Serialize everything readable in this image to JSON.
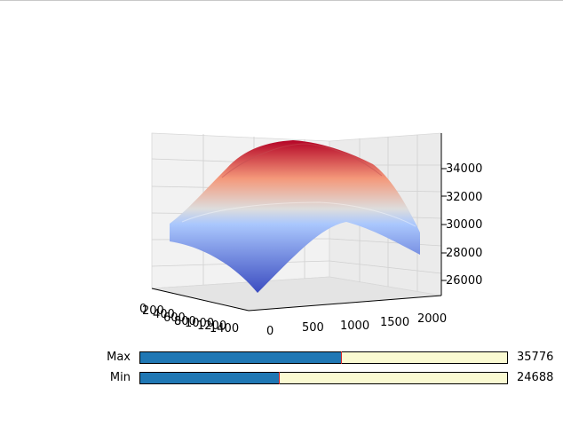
{
  "plot": {
    "z_ticks": [
      "26000",
      "28000",
      "30000",
      "32000",
      "34000"
    ],
    "x_ticks": [
      "0",
      "500",
      "1000",
      "1500",
      "2000"
    ],
    "y_ticks": [
      "0",
      "200",
      "400",
      "600",
      "800",
      "1000",
      "1200",
      "1400"
    ],
    "colormap": {
      "low": "#3b4cc0",
      "mid": "#dddddd",
      "high": "#b40426"
    }
  },
  "sliders": {
    "max": {
      "label": "Max",
      "value": "35776",
      "fraction": 0.548
    },
    "min": {
      "label": "Min",
      "value": "24688",
      "fraction": 0.377
    }
  },
  "colors": {
    "slider_fill": "#1f77b4",
    "slider_track": "#fafad2",
    "slider_handle": "#d62728"
  }
}
